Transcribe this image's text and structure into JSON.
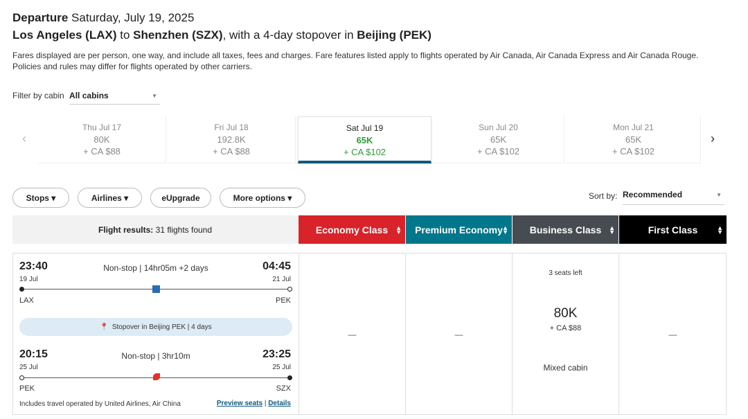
{
  "header": {
    "departure_label": "Departure",
    "date": "Saturday, July 19, 2025",
    "origin": "Los Angeles (LAX)",
    "to": "to",
    "destination": "Shenzhen (SZX)",
    "with_text": ", with a 4-day stopover in",
    "stopover": "Beijing (PEK)",
    "description": "Fares displayed are per person, one way, and include all taxes, fees and charges. Fare features listed apply to flights operated by Air Canada, Air Canada Express and Air Canada Rouge. Policies and rules may differ for flights operated by other carriers."
  },
  "filter": {
    "label": "Filter by cabin",
    "value": "All cabins"
  },
  "dates": [
    {
      "day": "Thu Jul 17",
      "points": "80K",
      "fee": "+ CA $88"
    },
    {
      "day": "Fri Jul 18",
      "points": "192.8K",
      "fee": "+ CA $88"
    },
    {
      "day": "Sat Jul 19",
      "points": "65K",
      "fee": "+ CA $102"
    },
    {
      "day": "Sun Jul 20",
      "points": "65K",
      "fee": "+ CA $102"
    },
    {
      "day": "Mon Jul 21",
      "points": "65K",
      "fee": "+ CA $102"
    }
  ],
  "selected_date_index": 2,
  "nav": {
    "prev": "‹",
    "next": "›"
  },
  "filters": {
    "stops": "Stops ▾",
    "airlines": "Airlines ▾",
    "eupgrade": "eUpgrade",
    "more": "More options ▾"
  },
  "sort": {
    "label": "Sort by:",
    "value": "Recommended"
  },
  "results": {
    "label": "Flight results:",
    "count": "31 flights found"
  },
  "cabins": [
    {
      "name": "Economy Class",
      "color": "#d8232a"
    },
    {
      "name": "Premium Economy",
      "color": "#00778b"
    },
    {
      "name": "Business Class",
      "color": "#474c52"
    },
    {
      "name": "First Class",
      "color": "#000000"
    }
  ],
  "flight": {
    "seg1": {
      "dep": "23:40",
      "dep_date": "19 Jul",
      "info": "Non-stop | 14hr05m +2 days",
      "arr": "04:45",
      "arr_date": "21 Jul",
      "from": "LAX",
      "to": "PEK",
      "airline_icon": "united-logo"
    },
    "stopover": "Stopover in Beijing PEK | 4 days",
    "seg2": {
      "dep": "20:15",
      "dep_date": "25 Jul",
      "info": "Non-stop | 3hr10m",
      "arr": "23:25",
      "arr_date": "25 Jul",
      "from": "PEK",
      "to": "SZX",
      "airline_icon": "air-china-logo"
    },
    "operated": "Includes travel operated by United Airlines, Air China",
    "preview": "Preview seats",
    "sep": "|",
    "details": "Details",
    "economy": "—",
    "premium": "—",
    "business": {
      "seats": "3 seats left",
      "points": "80K",
      "fee": "+ CA $88",
      "note": "Mixed cabin"
    },
    "first": "—"
  }
}
